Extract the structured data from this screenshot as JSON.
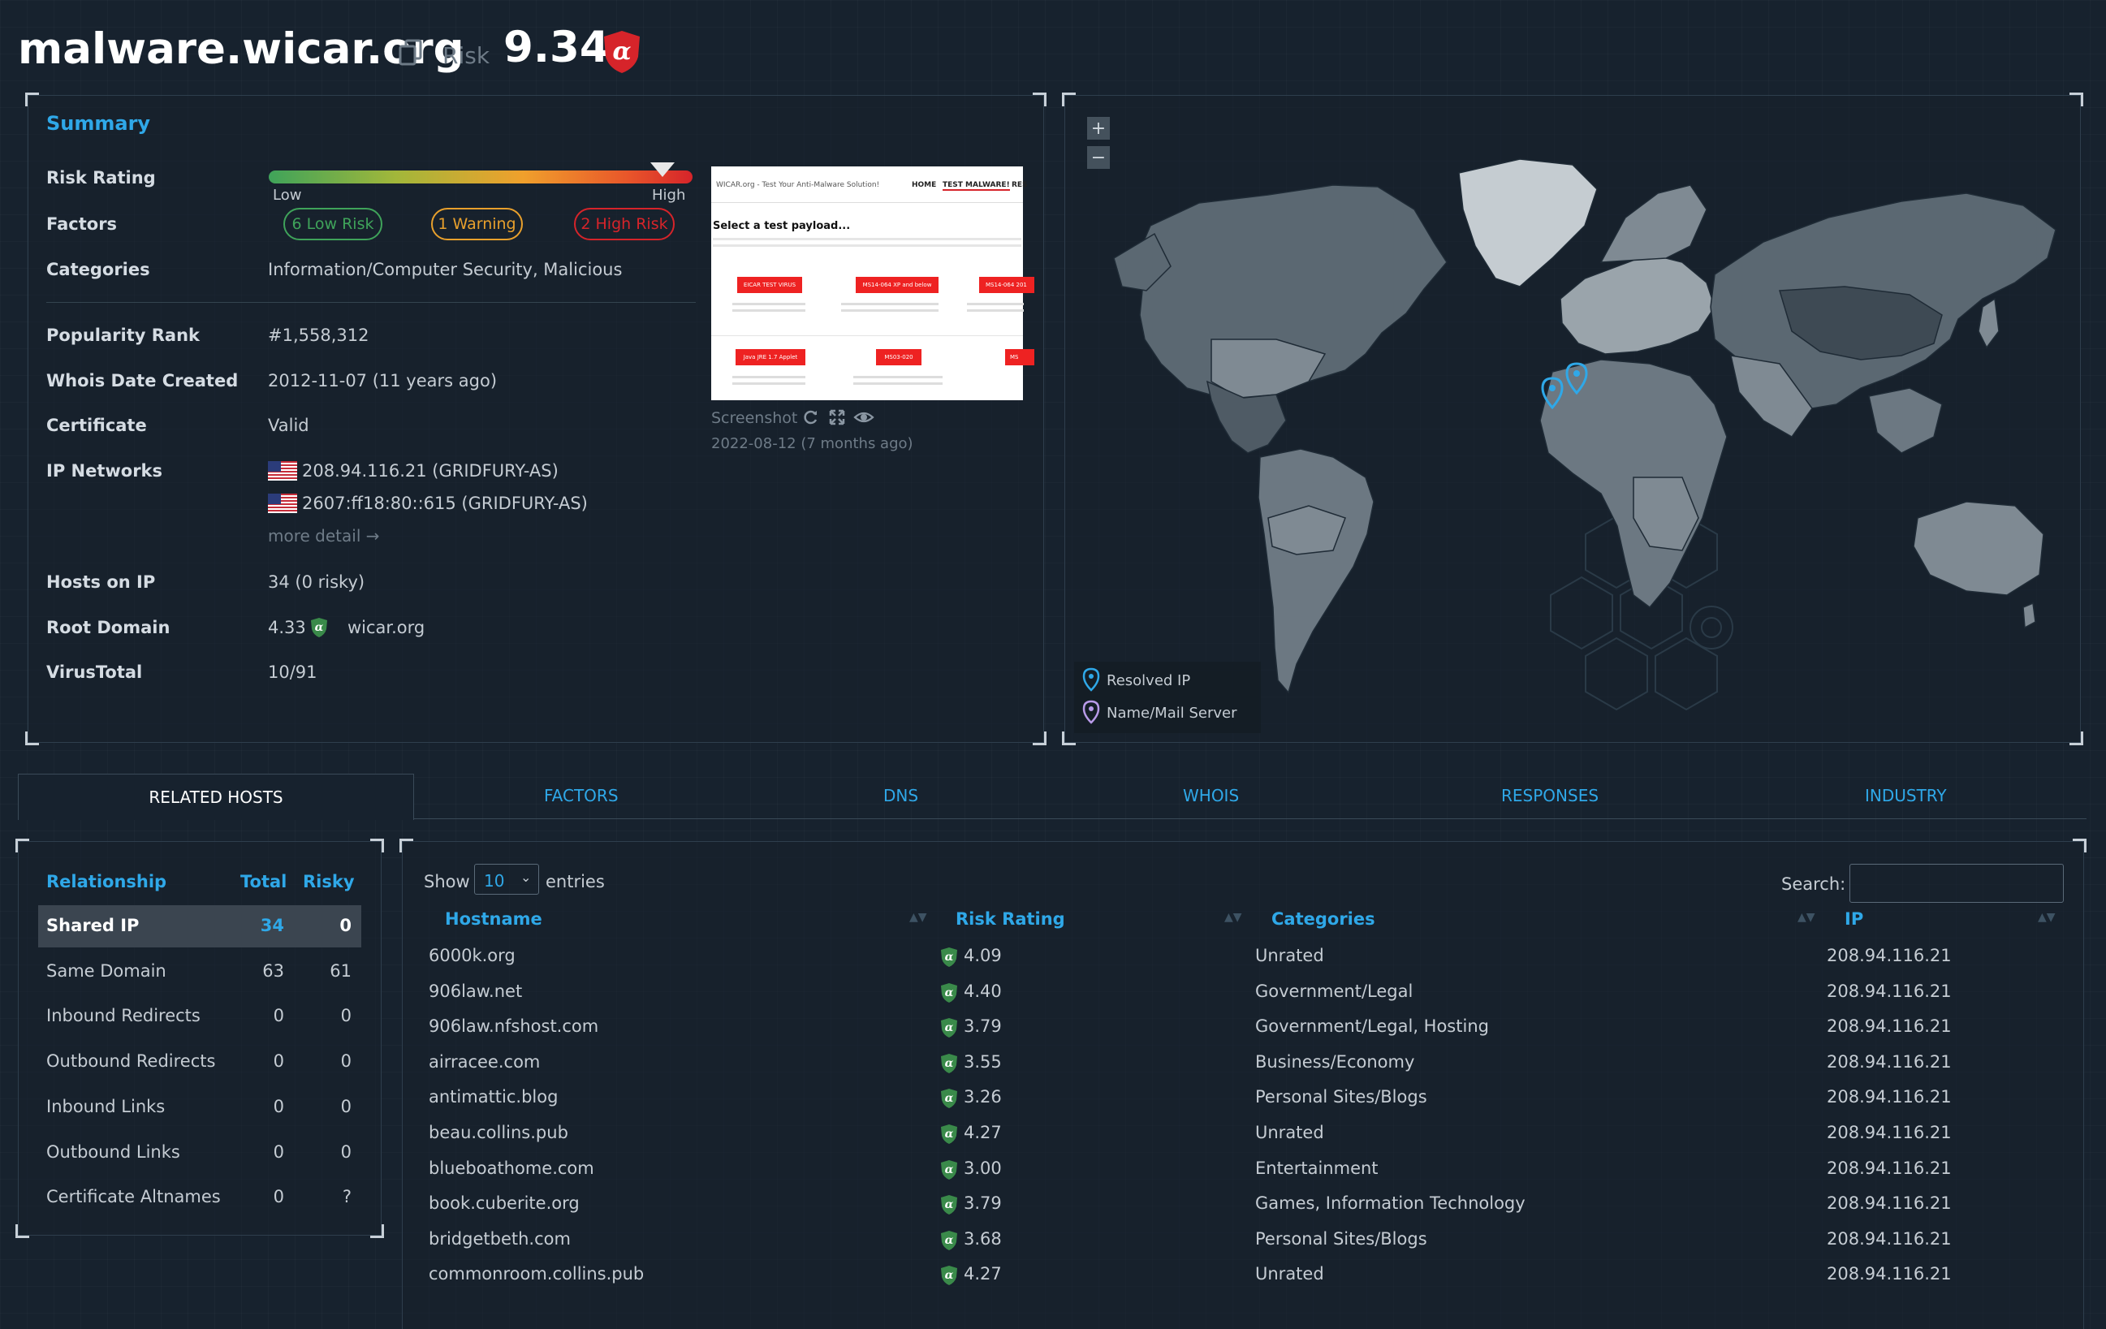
{
  "header": {
    "domain": "malware.wicar.org",
    "risk_label": "Risk",
    "risk_score": "9.34"
  },
  "summary": {
    "title": "Summary",
    "risk_rating_label": "Risk Rating",
    "risk_bar": {
      "low": "Low",
      "high": "High",
      "marker_position": 0.93
    },
    "factors_label": "Factors",
    "factors": {
      "low_risk": "6 Low Risk",
      "warning": "1 Warning",
      "high_risk": "2 High Risk"
    },
    "categories_label": "Categories",
    "categories_value": "Information/Computer Security, Malicious",
    "popularity_label": "Popularity Rank",
    "popularity_value": "#1,558,312",
    "whois_label": "Whois Date Created",
    "whois_value": "2012-11-07 (11 years ago)",
    "certificate_label": "Certificate",
    "certificate_value": "Valid",
    "ip_networks_label": "IP Networks",
    "ip_networks": [
      "208.94.116.21 (GRIDFURY-AS)",
      "2607:ff18:80::615 (GRIDFURY-AS)"
    ],
    "more_detail": "more detail →",
    "hosts_on_ip_label": "Hosts on IP",
    "hosts_on_ip_value": "34 (0 risky)",
    "root_domain_label": "Root Domain",
    "root_domain_score": "4.33",
    "root_domain_value": "wicar.org",
    "virustotal_label": "VirusTotal",
    "virustotal_value": "10/91",
    "screenshot_label": "Screenshot",
    "screenshot_date": "2022-08-12 (7 months ago)",
    "screenshot_content": {
      "site_title": "WICAR.org - Test Your Anti-Malware Solution!",
      "nav": [
        "HOME",
        "TEST MALWARE!",
        "RES"
      ],
      "heading": "Select a test payload...",
      "buttons": [
        "EICAR TEST VIRUS",
        "MS14-064 XP and below",
        "MS14-064 201",
        "Java JRE 1.7 Applet",
        "MS03-020",
        "MS"
      ]
    }
  },
  "map": {
    "zoom_in": "+",
    "zoom_out": "−",
    "legend": [
      "Resolved IP",
      "Name/Mail Server"
    ]
  },
  "tabs": [
    "RELATED HOSTS",
    "FACTORS",
    "DNS",
    "WHOIS",
    "RESPONSES",
    "INDUSTRY"
  ],
  "relationships": {
    "headers": [
      "Relationship",
      "Total",
      "Risky"
    ],
    "rows": [
      {
        "name": "Shared IP",
        "total": "34",
        "risky": "0"
      },
      {
        "name": "Same Domain",
        "total": "63",
        "risky": "61"
      },
      {
        "name": "Inbound Redirects",
        "total": "0",
        "risky": "0"
      },
      {
        "name": "Outbound Redirects",
        "total": "0",
        "risky": "0"
      },
      {
        "name": "Inbound Links",
        "total": "0",
        "risky": "0"
      },
      {
        "name": "Outbound Links",
        "total": "0",
        "risky": "0"
      },
      {
        "name": "Certificate Altnames",
        "total": "0",
        "risky": "?"
      }
    ]
  },
  "hosts_table": {
    "show_label": "Show",
    "entries_value": "10",
    "entries_label": "entries",
    "search_label": "Search:",
    "search_value": "",
    "headers": [
      "Hostname",
      "Risk Rating",
      "Categories",
      "IP"
    ],
    "rows": [
      {
        "host": "6000k.org",
        "risk": "4.09",
        "cat": "Unrated",
        "ip": "208.94.116.21"
      },
      {
        "host": "906law.net",
        "risk": "4.40",
        "cat": "Government/Legal",
        "ip": "208.94.116.21"
      },
      {
        "host": "906law.nfshost.com",
        "risk": "3.79",
        "cat": "Government/Legal, Hosting",
        "ip": "208.94.116.21"
      },
      {
        "host": "airracee.com",
        "risk": "3.55",
        "cat": "Business/Economy",
        "ip": "208.94.116.21"
      },
      {
        "host": "antimattic.blog",
        "risk": "3.26",
        "cat": "Personal Sites/Blogs",
        "ip": "208.94.116.21"
      },
      {
        "host": "beau.collins.pub",
        "risk": "4.27",
        "cat": "Unrated",
        "ip": "208.94.116.21"
      },
      {
        "host": "blueboathome.com",
        "risk": "3.00",
        "cat": "Entertainment",
        "ip": "208.94.116.21"
      },
      {
        "host": "book.cuberite.org",
        "risk": "3.79",
        "cat": "Games, Information Technology",
        "ip": "208.94.116.21"
      },
      {
        "host": "bridgetbeth.com",
        "risk": "3.68",
        "cat": "Personal Sites/Blogs",
        "ip": "208.94.116.21"
      },
      {
        "host": "commonroom.collins.pub",
        "risk": "4.27",
        "cat": "Unrated",
        "ip": "208.94.116.21"
      }
    ]
  },
  "colors": {
    "accent": "#2fa8e8",
    "low_risk": "#3fa35a",
    "warning": "#e8a02c",
    "high_risk": "#d6242a"
  }
}
